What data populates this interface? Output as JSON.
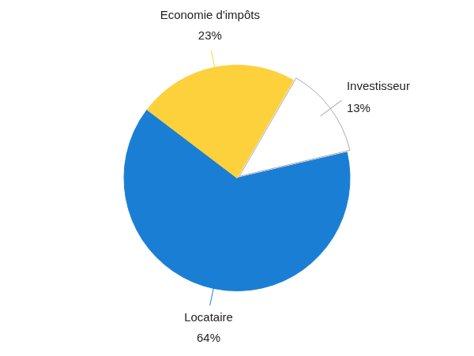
{
  "chart_data": {
    "type": "pie",
    "categories": [
      "Investisseur",
      "Locataire",
      "Economie d'impôts"
    ],
    "values": [
      13,
      64,
      23
    ],
    "value_labels": [
      "13%",
      "64%",
      "23%"
    ],
    "colors": [
      "#ffffff",
      "#1a7fd4",
      "#fdd13c"
    ],
    "data_labels": true,
    "legend": false
  }
}
